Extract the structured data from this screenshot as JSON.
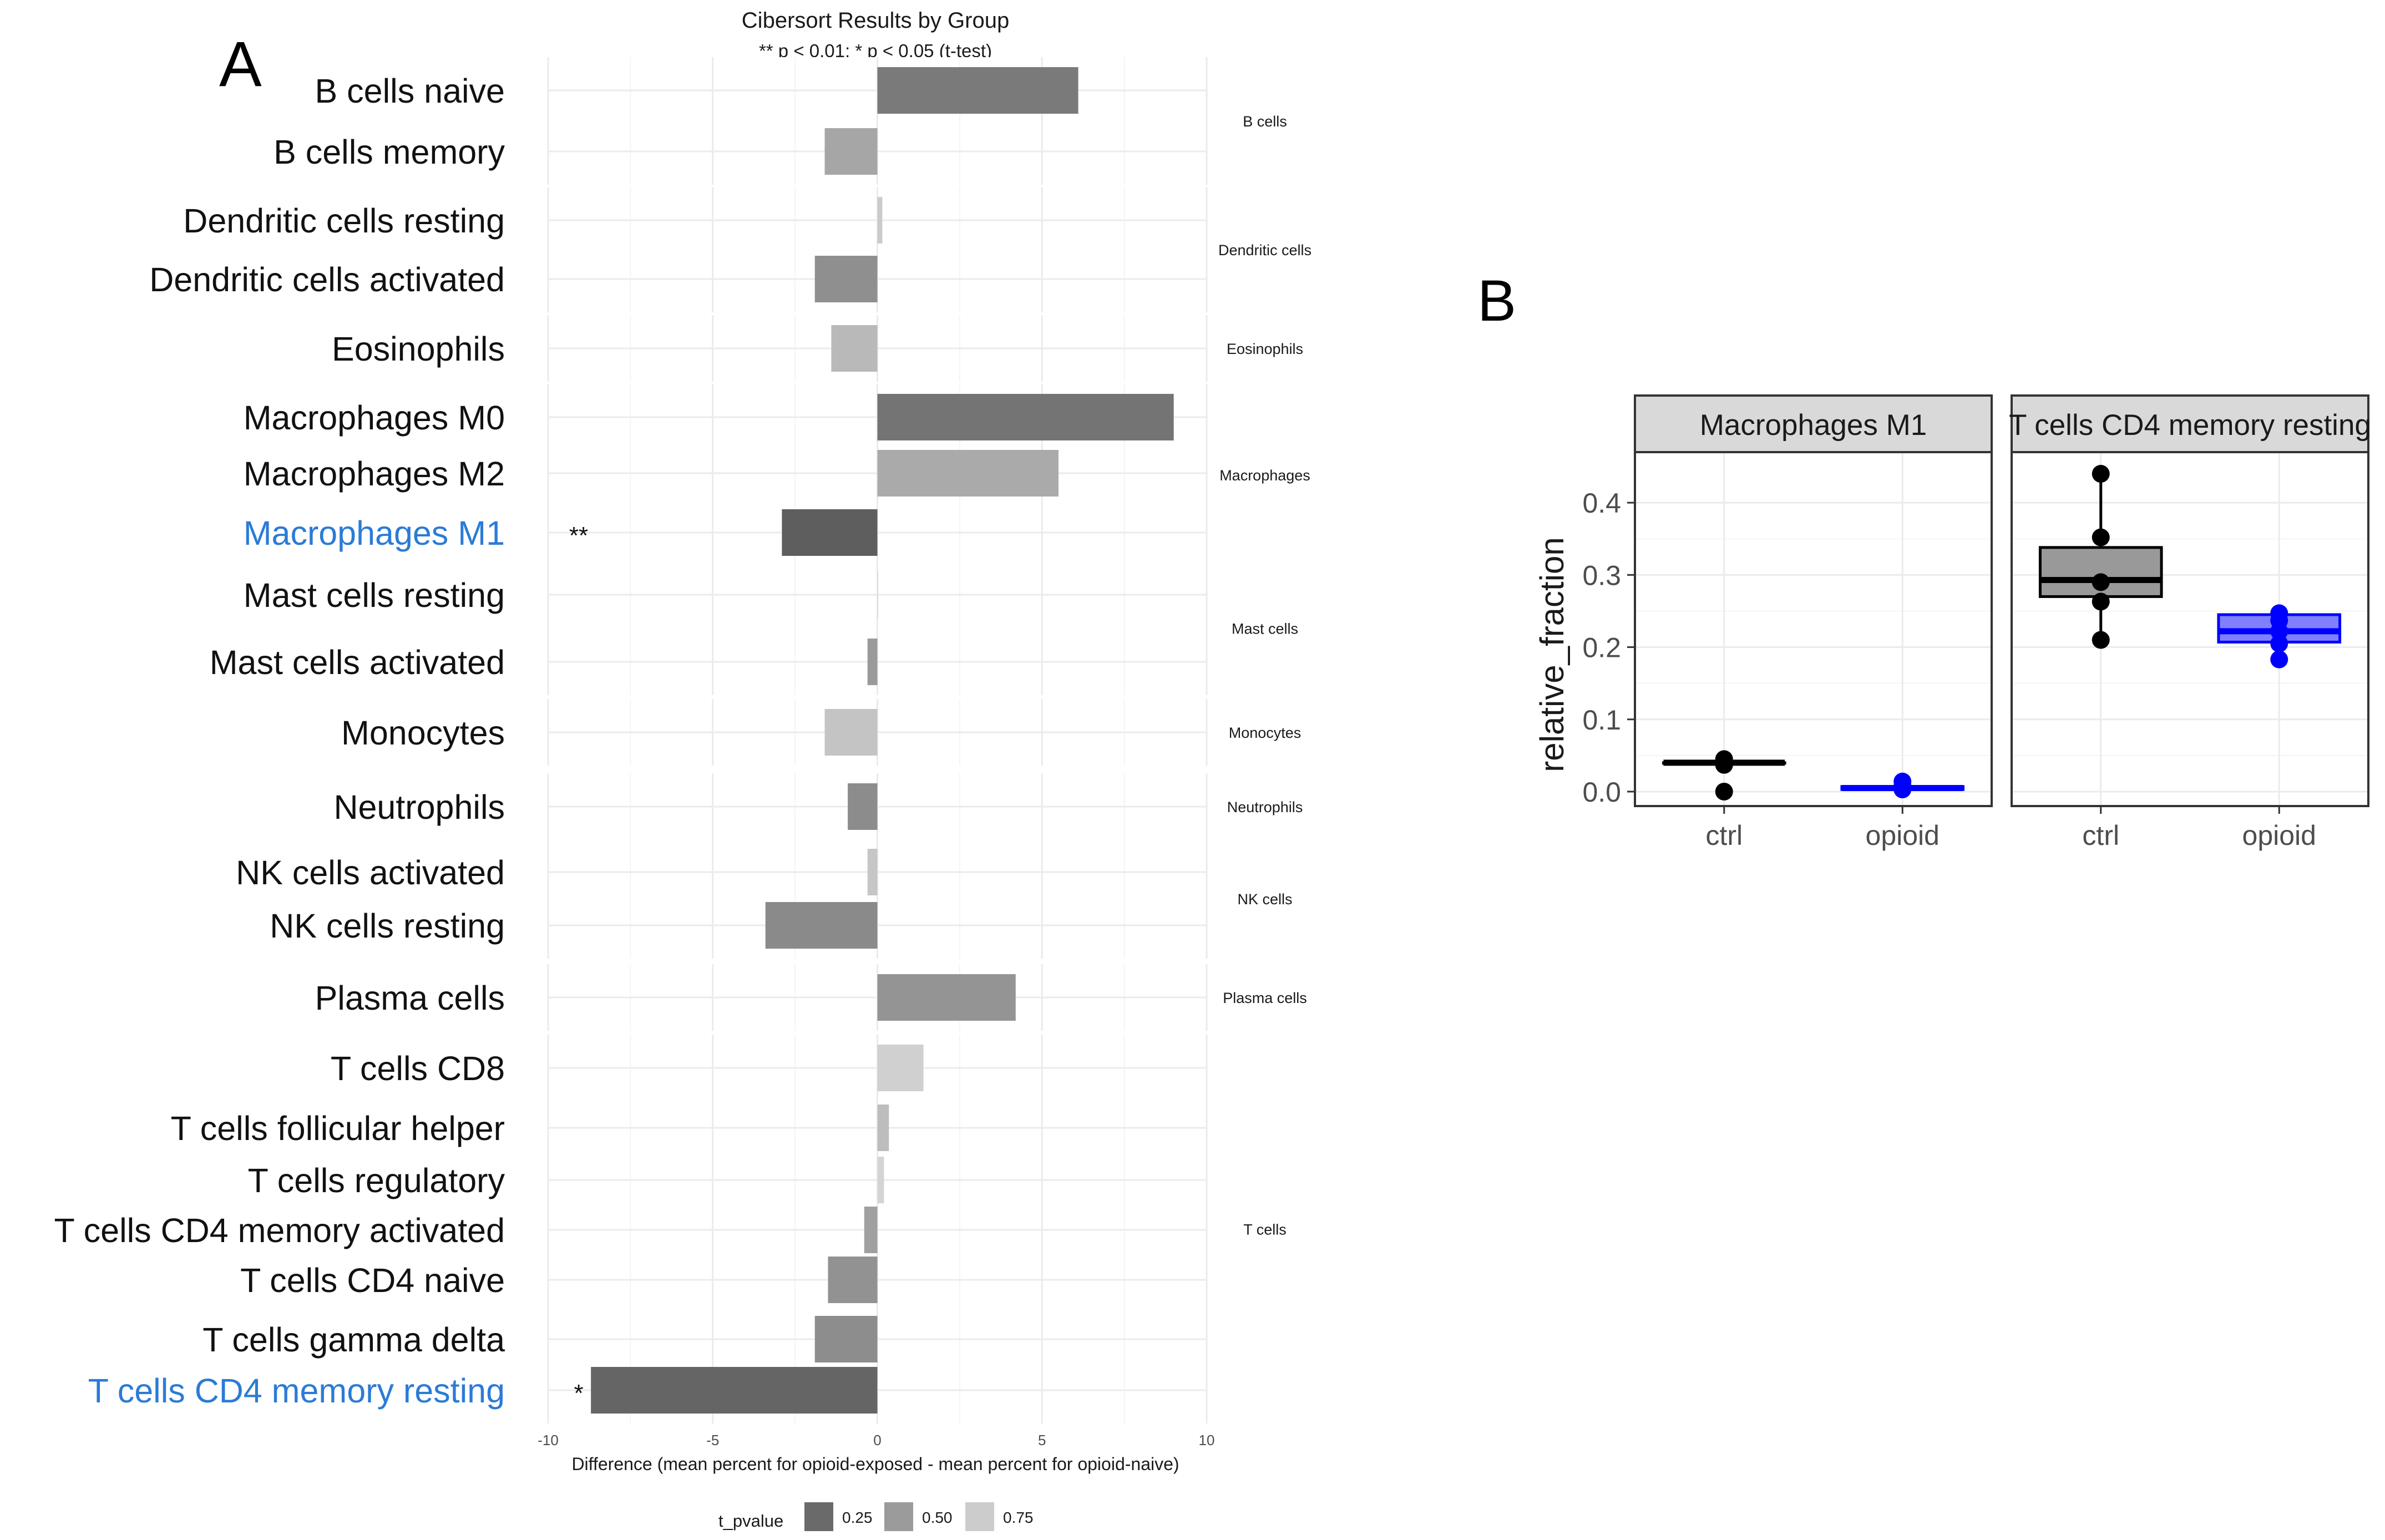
{
  "panel_labels": {
    "a": "A",
    "b": "B"
  },
  "chart_data": [
    {
      "type": "bar",
      "orientation": "horizontal",
      "title": "Cibersort Results by Group",
      "subtitle": "** p < 0.01; * p < 0.05 (t-test)",
      "xlabel": "Difference (mean percent for opioid-exposed - mean percent for opioid-naive)",
      "xlim": [
        -10,
        10
      ],
      "xticks": [
        -10,
        -5,
        0,
        5,
        10
      ],
      "xtick_labels": [
        "-10",
        "-5",
        "0",
        "5",
        "10"
      ],
      "grid": true,
      "highlight_color": "#2b7bd6",
      "legend": {
        "title": "t_pvalue",
        "placement": "bottom",
        "entries": [
          {
            "label": "0.25",
            "color": "#6a6a6a"
          },
          {
            "label": "0.50",
            "color": "#9b9b9b"
          },
          {
            "label": "0.75",
            "color": "#cccccc"
          }
        ]
      },
      "categories": [
        {
          "label": "B cells naive",
          "value": 6.1,
          "color": "#7a7a7a",
          "sig": "",
          "highlight": false,
          "group": "B cells"
        },
        {
          "label": "B cells memory",
          "value": -1.6,
          "color": "#a6a6a6",
          "sig": "",
          "highlight": false,
          "group": "B cells"
        },
        {
          "label": "Dendritic cells resting",
          "value": 0.15,
          "color": "#cbcbcb",
          "sig": "",
          "highlight": false,
          "group": "Dendritic cells"
        },
        {
          "label": "Dendritic cells activated",
          "value": -1.9,
          "color": "#8f8f8f",
          "sig": "",
          "highlight": false,
          "group": "Dendritic cells"
        },
        {
          "label": "Eosinophils",
          "value": -1.4,
          "color": "#b9b9b9",
          "sig": "",
          "highlight": false,
          "group": "Eosinophils"
        },
        {
          "label": "Macrophages M0",
          "value": 9.0,
          "color": "#747474",
          "sig": "",
          "highlight": false,
          "group": "Macrophages"
        },
        {
          "label": "Macrophages M2",
          "value": 5.5,
          "color": "#aaaaaa",
          "sig": "",
          "highlight": false,
          "group": "Macrophages"
        },
        {
          "label": "Macrophages M1",
          "value": -2.9,
          "color": "#5e5e5e",
          "sig": "**",
          "highlight": true,
          "group": "Macrophages"
        },
        {
          "label": "Mast cells resting",
          "value": 0,
          "color": "#cccccc",
          "sig": "",
          "highlight": false,
          "group": "Mast cells"
        },
        {
          "label": "Mast cells activated",
          "value": -0.3,
          "color": "#9a9a9a",
          "sig": "",
          "highlight": false,
          "group": "Mast cells"
        },
        {
          "label": "Monocytes",
          "value": -1.6,
          "color": "#c4c4c4",
          "sig": "",
          "highlight": false,
          "group": "Monocytes"
        },
        {
          "label": "Neutrophils",
          "value": -0.9,
          "color": "#8c8c8c",
          "sig": "",
          "highlight": false,
          "group": "Neutrophils"
        },
        {
          "label": "NK cells activated",
          "value": -0.3,
          "color": "#c6c6c6",
          "sig": "",
          "highlight": false,
          "group": "NK cells"
        },
        {
          "label": "NK cells resting",
          "value": -3.4,
          "color": "#8a8a8a",
          "sig": "",
          "highlight": false,
          "group": "NK cells"
        },
        {
          "label": "Plasma cells",
          "value": 4.2,
          "color": "#949494",
          "sig": "",
          "highlight": false,
          "group": "Plasma cells"
        },
        {
          "label": "T cells CD8",
          "value": 1.4,
          "color": "#d0d0d0",
          "sig": "",
          "highlight": false,
          "group": "T cells"
        },
        {
          "label": "T cells follicular helper",
          "value": 0.35,
          "color": "#bdbdbd",
          "sig": "",
          "highlight": false,
          "group": "T cells"
        },
        {
          "label": "T cells regulatory",
          "value": 0.2,
          "color": "#d4d4d4",
          "sig": "",
          "highlight": false,
          "group": "T cells"
        },
        {
          "label": "T cells CD4 memory activated",
          "value": -0.4,
          "color": "#a0a0a0",
          "sig": "",
          "highlight": false,
          "group": "T cells"
        },
        {
          "label": "T cells CD4 naive",
          "value": -1.5,
          "color": "#929292",
          "sig": "",
          "highlight": false,
          "group": "T cells"
        },
        {
          "label": "T cells gamma delta",
          "value": -1.9,
          "color": "#8d8d8d",
          "sig": "",
          "highlight": false,
          "group": "T cells"
        },
        {
          "label": "T cells CD4 memory resting",
          "value": -8.7,
          "color": "#656565",
          "sig": "*",
          "highlight": true,
          "group": "T cells"
        }
      ],
      "facet_groups": [
        {
          "label": "B cells",
          "count": 2
        },
        {
          "label": "Dendritic cells",
          "count": 2
        },
        {
          "label": "Eosinophils",
          "count": 1
        },
        {
          "label": "Macrophages",
          "count": 3
        },
        {
          "label": "Mast cells",
          "count": 2
        },
        {
          "label": "Monocytes",
          "count": 1
        },
        {
          "label": "Neutrophils",
          "count": 1
        },
        {
          "label": "NK cells",
          "count": 2
        },
        {
          "label": "Plasma cells",
          "count": 1
        },
        {
          "label": "T cells",
          "count": 7
        }
      ]
    },
    {
      "type": "box",
      "ylabel": "relative_fraction",
      "ylim": [
        -0.02,
        0.47
      ],
      "yticks": [
        0.0,
        0.1,
        0.2,
        0.3,
        0.4
      ],
      "ytick_labels": [
        "0.0",
        "0.1",
        "0.2",
        "0.3",
        "0.4"
      ],
      "categories": [
        "ctrl",
        "opioid"
      ],
      "group_colors": {
        "ctrl": "#000000",
        "opioid": "#0000ff"
      },
      "box_fills": {
        "ctrl": "#999999",
        "opioid": "#8080ff"
      },
      "facets": [
        {
          "title": "Macrophages M1",
          "boxes": [
            {
              "group": "ctrl",
              "q1": 0.04,
              "median": 0.04,
              "q3": 0.04,
              "whisker_low": 0.04,
              "whisker_high": 0.04,
              "points": [
                0.0,
                0.037,
                0.045
              ]
            },
            {
              "group": "opioid",
              "q1": 0.003,
              "median": 0.005,
              "q3": 0.007,
              "whisker_low": 0.003,
              "whisker_high": 0.007,
              "points": [
                0.003,
                0.008,
                0.014
              ]
            }
          ]
        },
        {
          "title": "T cells CD4 memory resting",
          "boxes": [
            {
              "group": "ctrl",
              "q1": 0.27,
              "median": 0.293,
              "q3": 0.338,
              "whisker_low": 0.21,
              "whisker_high": 0.44,
              "points": [
                0.21,
                0.263,
                0.29,
                0.352,
                0.44
              ]
            },
            {
              "group": "opioid",
              "q1": 0.207,
              "median": 0.222,
              "q3": 0.245,
              "whisker_low": 0.185,
              "whisker_high": 0.245,
              "points": [
                0.183,
                0.205,
                0.222,
                0.237,
                0.247
              ]
            }
          ]
        }
      ]
    }
  ]
}
